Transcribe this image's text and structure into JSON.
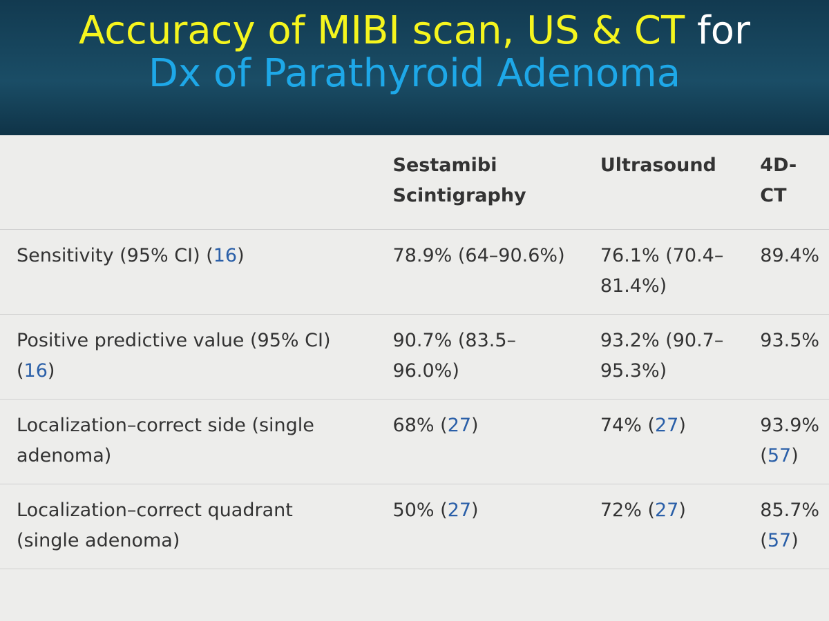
{
  "header": {
    "title_line1": [
      {
        "text": "Accuracy of MIBI scan, US & CT",
        "color": "#f5f51e"
      },
      {
        "text": "for",
        "color": "#ffffff"
      }
    ],
    "title_line2": [
      {
        "text": "Dx of Parathyroid Adenoma",
        "color": "#1ea8e8"
      }
    ]
  },
  "table": {
    "columns": [
      "",
      "Sestamibi Scintigraphy",
      "Ultrasound",
      "4D-CT"
    ],
    "rows": [
      [
        [
          "Sensitivity (95% CI) (",
          "16",
          ")"
        ],
        [
          "78.9% (64–90.6%)"
        ],
        [
          "76.1% (70.4–81.4%)"
        ],
        [
          "89.4%"
        ]
      ],
      [
        [
          "Positive predictive value (95% CI) (",
          "16",
          ")"
        ],
        [
          "90.7% (83.5–96.0%)"
        ],
        [
          "93.2% (90.7–95.3%)"
        ],
        [
          "93.5%"
        ]
      ],
      [
        [
          "Localization–correct side (single adenoma)"
        ],
        [
          "68% (",
          "27",
          ")"
        ],
        [
          "74% (",
          "27",
          ")"
        ],
        [
          "93.9% (",
          "57",
          ")"
        ]
      ],
      [
        [
          "Localization–correct quadrant (single adenoma)"
        ],
        [
          "50% (",
          "27",
          ")"
        ],
        [
          "72% (",
          "27",
          ")"
        ],
        [
          "85.7% (",
          "57",
          ")"
        ]
      ]
    ]
  }
}
